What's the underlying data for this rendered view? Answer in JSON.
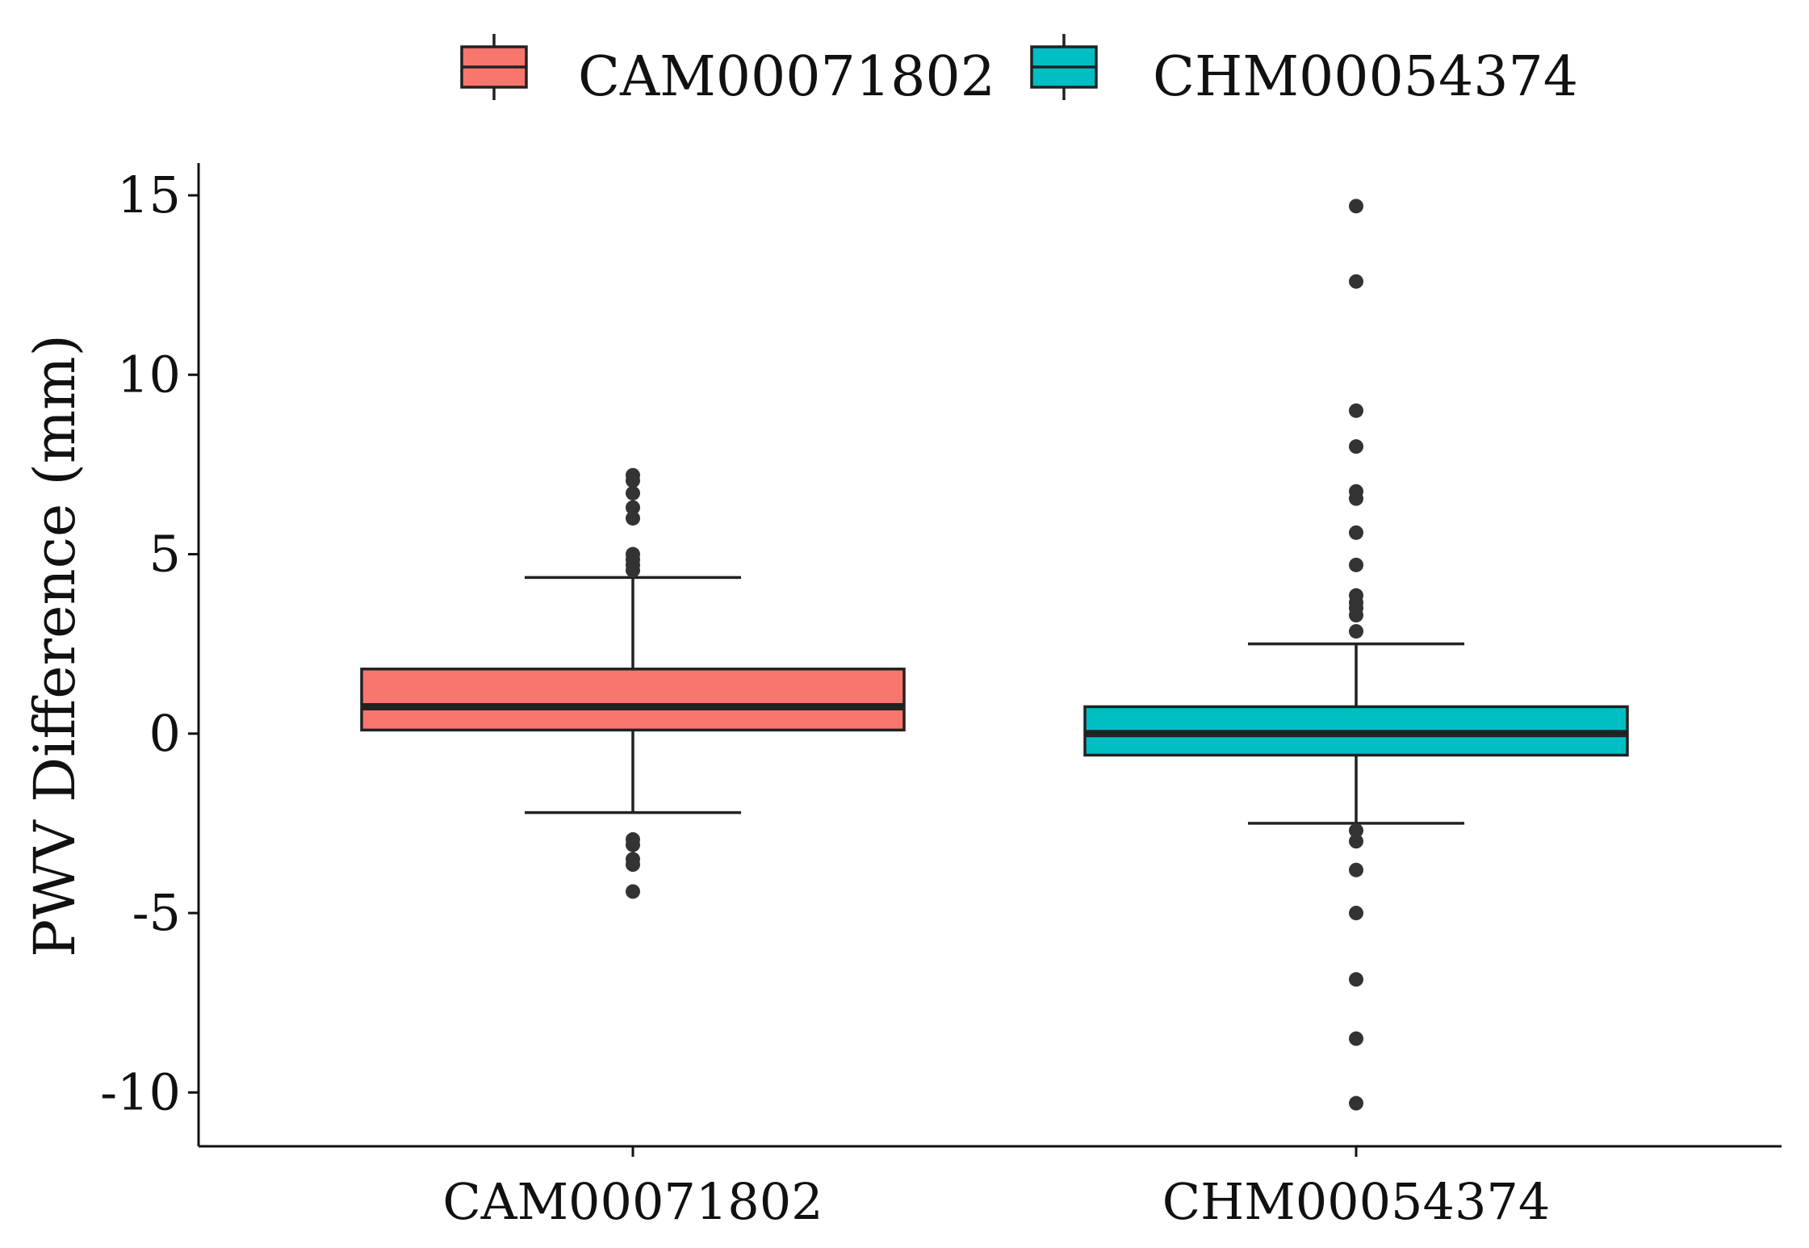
{
  "chart_data": {
    "type": "boxplot",
    "title": "",
    "xlabel": "",
    "ylabel": "PWV Difference (mm)",
    "ylim": [
      -11.5,
      15.9
    ],
    "yticks": [
      15,
      10,
      5,
      0,
      -5,
      -10
    ],
    "ytick_labels": [
      "15",
      "10",
      "5",
      "0",
      "-5",
      "-10"
    ],
    "categories": [
      "CAM00071802",
      "CHM00054374"
    ],
    "grid": false,
    "legend": {
      "position": "top",
      "entries": [
        "CAM00071802",
        "CHM00054374"
      ]
    },
    "series": [
      {
        "name": "CAM00071802",
        "color": "#F8766D",
        "whisker_low": -2.2,
        "q1": 0.1,
        "median": 0.75,
        "q3": 1.8,
        "whisker_high": 4.35,
        "outliers": [
          7.2,
          7.05,
          6.7,
          6.3,
          6.0,
          5.0,
          4.85,
          4.7,
          4.55,
          -2.95,
          -3.1,
          -3.5,
          -3.65,
          -4.4
        ]
      },
      {
        "name": "CHM00054374",
        "color": "#00BFC4",
        "whisker_low": -2.5,
        "q1": -0.6,
        "median": 0.0,
        "q3": 0.75,
        "whisker_high": 2.5,
        "outliers": [
          14.7,
          12.6,
          9.0,
          8.0,
          6.75,
          6.55,
          5.6,
          4.7,
          3.85,
          3.65,
          3.5,
          3.3,
          2.85,
          -2.7,
          -3.0,
          -3.8,
          -5.0,
          -6.85,
          -8.5,
          -10.3
        ]
      }
    ]
  }
}
